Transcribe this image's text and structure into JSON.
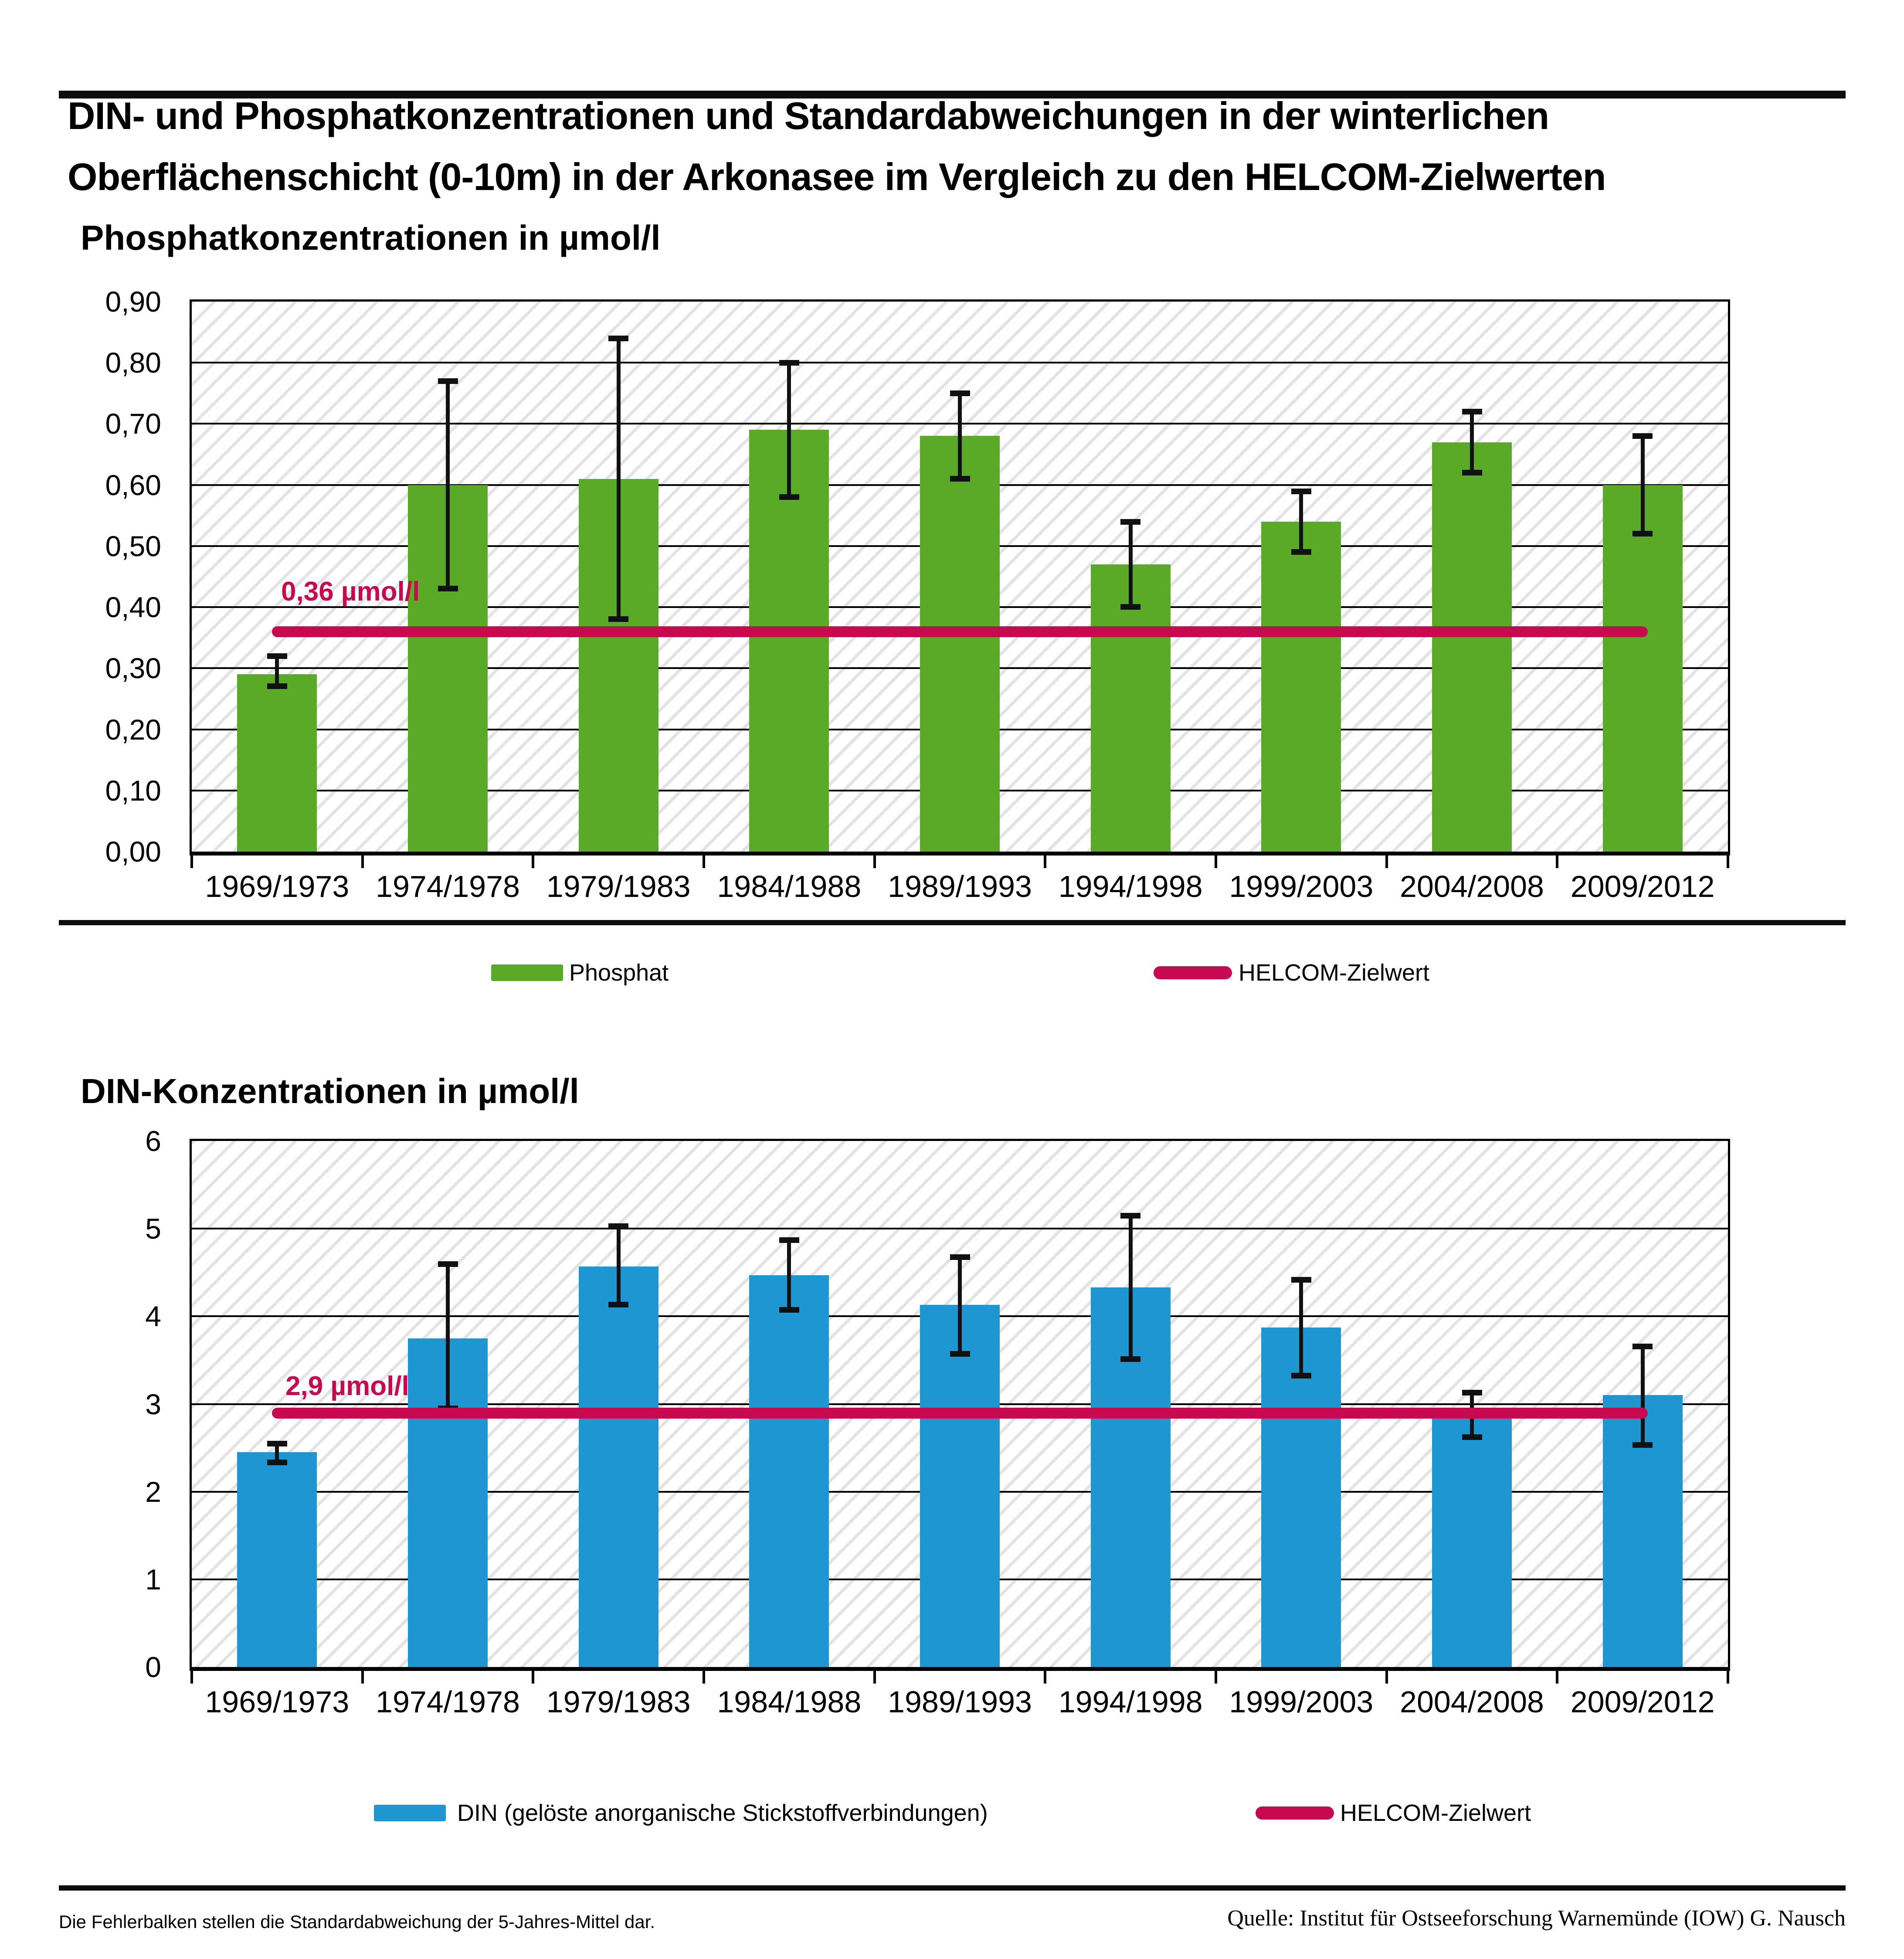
{
  "header": {
    "title_line1": "DIN- und Phosphatkonzentrationen und Standardabweichungen in der winterlichen",
    "title_line2": "Oberflächenschicht (0-10m) in der Arkonasee im Vergleich zu den HELCOM-Zielwerten"
  },
  "chart_data": [
    {
      "type": "bar",
      "subtitle": "Phosphatkonzentrationen in µmol/l",
      "categories": [
        "1969/1973",
        "1974/1978",
        "1979/1983",
        "1984/1988",
        "1989/1993",
        "1994/1998",
        "1999/2003",
        "2004/2008",
        "2009/2012"
      ],
      "values": [
        0.29,
        0.6,
        0.61,
        0.69,
        0.68,
        0.47,
        0.54,
        0.67,
        0.6
      ],
      "error_low": [
        0.27,
        0.43,
        0.38,
        0.58,
        0.61,
        0.4,
        0.49,
        0.62,
        0.52
      ],
      "error_high": [
        0.32,
        0.77,
        0.84,
        0.8,
        0.75,
        0.54,
        0.59,
        0.72,
        0.68
      ],
      "ylim": [
        0,
        0.9
      ],
      "ytick_step": 0.1,
      "ytick_labels": [
        "0,00",
        "0,10",
        "0,20",
        "0,30",
        "0,40",
        "0,50",
        "0,60",
        "0,70",
        "0,80",
        "0,90"
      ],
      "grid": true,
      "bar_color": "#5aaa28",
      "target": {
        "value": 0.36,
        "label": "0,36 µmol/l",
        "color": "#c70a50"
      },
      "legend": [
        {
          "label": "Phosphat",
          "color": "#5aaa28",
          "shape": "rect"
        },
        {
          "label": "HELCOM-Zielwert",
          "color": "#c70a50",
          "shape": "line"
        }
      ],
      "legend_position": "bottom"
    },
    {
      "type": "bar",
      "subtitle": "DIN-Konzentrationen in µmol/l",
      "categories": [
        "1969/1973",
        "1974/1978",
        "1979/1983",
        "1984/1988",
        "1989/1993",
        "1994/1998",
        "1999/2003",
        "2004/2008",
        "2009/2012"
      ],
      "values": [
        2.45,
        3.75,
        4.57,
        4.47,
        4.13,
        4.33,
        3.87,
        2.85,
        3.1
      ],
      "error_low": [
        2.33,
        2.95,
        4.13,
        4.07,
        3.57,
        3.51,
        3.32,
        2.62,
        2.53
      ],
      "error_high": [
        2.55,
        4.6,
        5.03,
        4.87,
        4.68,
        5.15,
        4.42,
        3.13,
        3.66
      ],
      "ylim": [
        0,
        6
      ],
      "ytick_step": 1,
      "ytick_labels": [
        "0",
        "1",
        "2",
        "3",
        "4",
        "5",
        "6"
      ],
      "grid": true,
      "bar_color": "#1e96d2",
      "target": {
        "value": 2.9,
        "label": "2,9 µmol/l",
        "color": "#c70a50"
      },
      "legend": [
        {
          "label": "DIN (gelöste anorganische Stickstoffverbindungen)",
          "color": "#1e96d2",
          "shape": "rect"
        },
        {
          "label": "HELCOM-Zielwert",
          "color": "#c70a50",
          "shape": "line"
        }
      ],
      "legend_position": "bottom"
    }
  ],
  "footer": {
    "left": "Die Fehlerbalken stellen die Standardabweichung der 5-Jahres-Mittel dar.",
    "right": "Quelle: Institut für Ostseeforschung Warnemünde (IOW) G. Nausch"
  },
  "colors": {
    "phosphat_green": "#5aaa28",
    "din_blue": "#1e96d2",
    "helcom_pink": "#c70a50",
    "hatch_gray": "#e3e3e3",
    "grid_black": "#000000"
  }
}
